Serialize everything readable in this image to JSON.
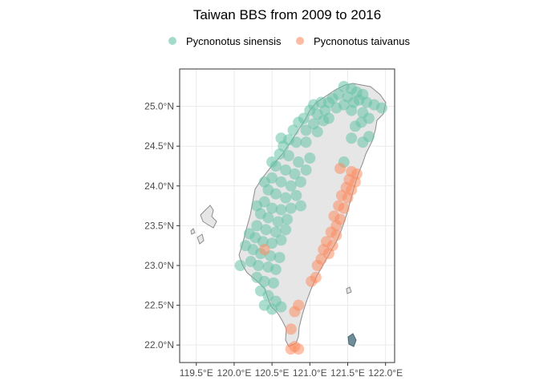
{
  "chart_data": {
    "type": "scatter",
    "title": "Taiwan BBS from 2009 to 2016",
    "xlabel": "",
    "ylabel": "",
    "xlim": [
      119.28,
      122.12
    ],
    "ylim": [
      21.78,
      25.47
    ],
    "x_ticks": [
      {
        "value": 119.5,
        "label": "119.5°E"
      },
      {
        "value": 120.0,
        "label": "120.0°E"
      },
      {
        "value": 120.5,
        "label": "120.5°E"
      },
      {
        "value": 121.0,
        "label": "121.0°E"
      },
      {
        "value": 121.5,
        "label": "121.5°E"
      },
      {
        "value": 122.0,
        "label": "122.0°E"
      }
    ],
    "y_ticks": [
      {
        "value": 22.0,
        "label": "22.0°N"
      },
      {
        "value": 22.5,
        "label": "22.5°N"
      },
      {
        "value": 23.0,
        "label": "23.0°N"
      },
      {
        "value": 23.5,
        "label": "23.5°N"
      },
      {
        "value": 24.0,
        "label": "24.0°N"
      },
      {
        "value": 24.5,
        "label": "24.5°N"
      },
      {
        "value": 25.0,
        "label": "25.0°N"
      }
    ],
    "grid": true,
    "legend_position": "top",
    "series": [
      {
        "name": "Pycnonotus sinensis",
        "color": "#66c2a5",
        "points": [
          [
            121.45,
            25.25
          ],
          [
            121.55,
            25.22
          ],
          [
            121.62,
            25.18
          ],
          [
            121.7,
            25.15
          ],
          [
            121.5,
            25.12
          ],
          [
            121.38,
            25.15
          ],
          [
            121.3,
            25.1
          ],
          [
            121.58,
            25.05
          ],
          [
            121.65,
            25.08
          ],
          [
            121.75,
            25.05
          ],
          [
            121.85,
            25.02
          ],
          [
            121.95,
            24.98
          ],
          [
            121.45,
            25.02
          ],
          [
            121.25,
            25.05
          ],
          [
            121.15,
            25.05
          ],
          [
            121.05,
            25.02
          ],
          [
            121.35,
            24.98
          ],
          [
            121.55,
            24.95
          ],
          [
            121.7,
            24.92
          ],
          [
            121.78,
            24.85
          ],
          [
            121.68,
            24.8
          ],
          [
            121.6,
            24.75
          ],
          [
            121.2,
            24.95
          ],
          [
            121.1,
            24.9
          ],
          [
            121.0,
            24.95
          ],
          [
            120.92,
            24.85
          ],
          [
            121.05,
            24.78
          ],
          [
            121.18,
            24.82
          ],
          [
            120.85,
            24.8
          ],
          [
            120.78,
            24.7
          ],
          [
            120.95,
            24.7
          ],
          [
            121.1,
            24.68
          ],
          [
            120.72,
            24.58
          ],
          [
            120.65,
            24.5
          ],
          [
            120.82,
            24.55
          ],
          [
            120.95,
            24.55
          ],
          [
            121.78,
            24.62
          ],
          [
            121.7,
            24.55
          ],
          [
            120.6,
            24.4
          ],
          [
            120.72,
            24.38
          ],
          [
            120.85,
            24.3
          ],
          [
            121.0,
            24.35
          ],
          [
            120.55,
            24.25
          ],
          [
            120.68,
            24.2
          ],
          [
            120.8,
            24.15
          ],
          [
            120.95,
            24.2
          ],
          [
            120.5,
            24.1
          ],
          [
            120.62,
            24.05
          ],
          [
            120.75,
            24.0
          ],
          [
            120.88,
            24.05
          ],
          [
            120.45,
            23.95
          ],
          [
            120.55,
            23.9
          ],
          [
            120.68,
            23.85
          ],
          [
            120.82,
            23.88
          ],
          [
            120.4,
            23.8
          ],
          [
            120.5,
            23.72
          ],
          [
            120.62,
            23.7
          ],
          [
            120.75,
            23.72
          ],
          [
            120.88,
            23.75
          ],
          [
            120.35,
            23.65
          ],
          [
            120.45,
            23.6
          ],
          [
            120.58,
            23.55
          ],
          [
            120.7,
            23.58
          ],
          [
            120.3,
            23.5
          ],
          [
            120.42,
            23.45
          ],
          [
            120.55,
            23.42
          ],
          [
            120.68,
            23.45
          ],
          [
            120.28,
            23.35
          ],
          [
            120.38,
            23.3
          ],
          [
            120.5,
            23.28
          ],
          [
            120.62,
            23.32
          ],
          [
            120.25,
            23.2
          ],
          [
            120.35,
            23.15
          ],
          [
            120.48,
            23.12
          ],
          [
            120.6,
            23.1
          ],
          [
            120.22,
            23.05
          ],
          [
            120.32,
            23.0
          ],
          [
            120.45,
            22.98
          ],
          [
            120.55,
            22.95
          ],
          [
            120.3,
            22.85
          ],
          [
            120.4,
            22.8
          ],
          [
            120.52,
            22.78
          ],
          [
            120.35,
            22.68
          ],
          [
            120.45,
            22.62
          ],
          [
            120.55,
            22.55
          ],
          [
            120.4,
            22.5
          ],
          [
            120.5,
            22.45
          ],
          [
            120.62,
            22.48
          ],
          [
            120.08,
            23.0
          ],
          [
            120.15,
            23.25
          ],
          [
            120.2,
            23.4
          ],
          [
            120.3,
            23.75
          ],
          [
            120.4,
            24.05
          ],
          [
            120.5,
            24.3
          ],
          [
            120.62,
            24.6
          ],
          [
            121.45,
            24.3
          ],
          [
            121.55,
            24.6
          ],
          [
            121.25,
            24.85
          ]
        ]
      },
      {
        "name": "Pycnonotus taivanus",
        "color": "#fc8d62",
        "points": [
          [
            121.55,
            24.18
          ],
          [
            121.62,
            24.15
          ],
          [
            121.52,
            24.08
          ],
          [
            121.6,
            24.05
          ],
          [
            121.48,
            23.98
          ],
          [
            121.55,
            23.95
          ],
          [
            121.42,
            23.88
          ],
          [
            121.5,
            23.85
          ],
          [
            121.38,
            23.75
          ],
          [
            121.45,
            23.72
          ],
          [
            121.32,
            23.62
          ],
          [
            121.4,
            23.58
          ],
          [
            121.35,
            23.5
          ],
          [
            121.28,
            23.42
          ],
          [
            121.35,
            23.38
          ],
          [
            121.22,
            23.3
          ],
          [
            121.3,
            23.25
          ],
          [
            121.18,
            23.2
          ],
          [
            121.25,
            23.15
          ],
          [
            121.15,
            23.08
          ],
          [
            121.08,
            22.85
          ],
          [
            121.02,
            22.8
          ],
          [
            120.85,
            22.5
          ],
          [
            120.8,
            22.42
          ],
          [
            120.75,
            22.2
          ],
          [
            120.8,
            21.98
          ],
          [
            120.75,
            21.95
          ],
          [
            120.85,
            21.95
          ],
          [
            121.4,
            24.22
          ],
          [
            120.4,
            23.2
          ],
          [
            121.1,
            23.0
          ]
        ]
      }
    ]
  }
}
